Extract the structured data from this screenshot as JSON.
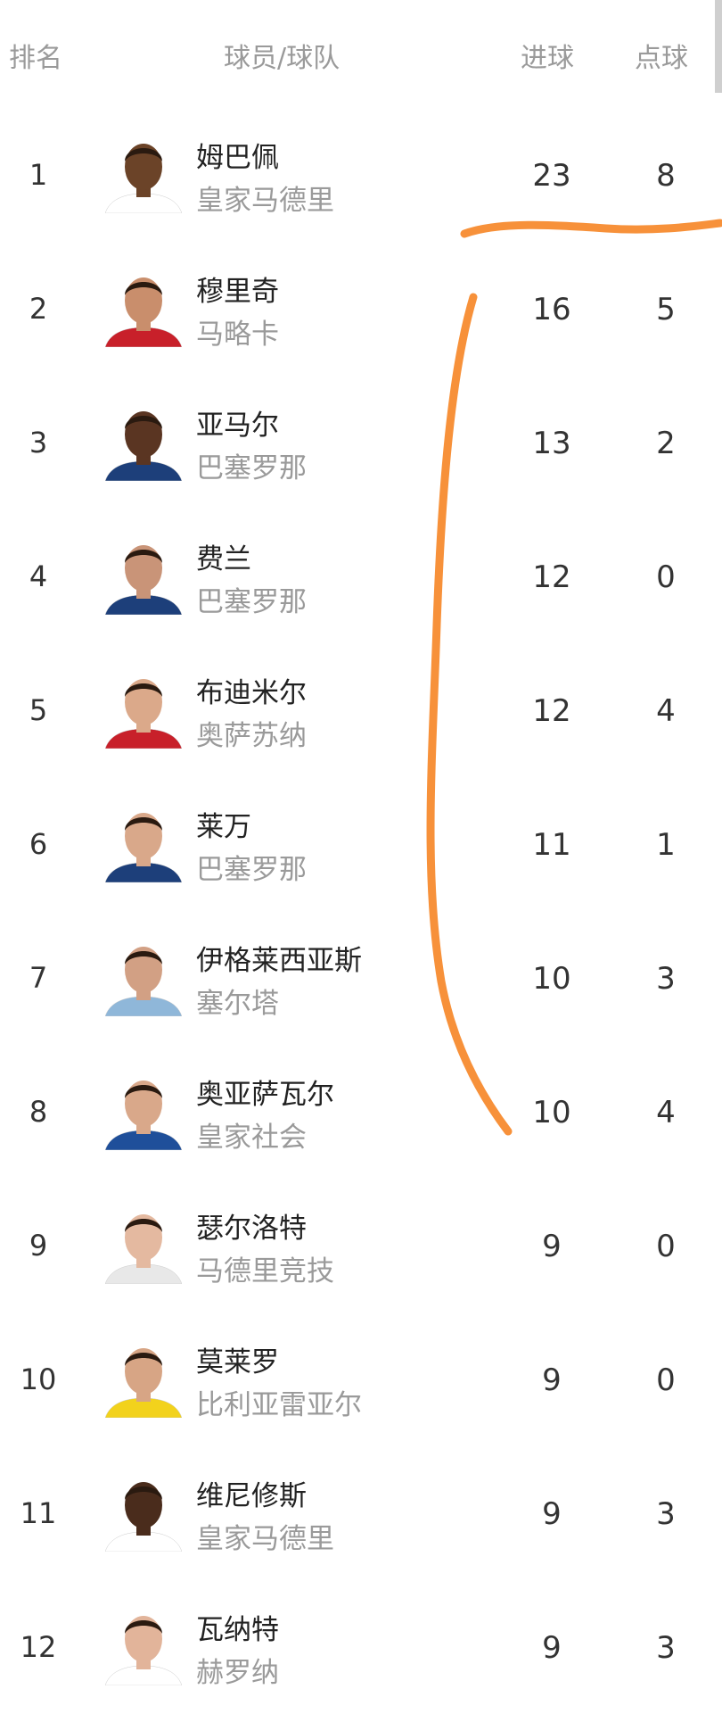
{
  "header": {
    "rank": "排名",
    "player_team": "球员/球队",
    "goals": "进球",
    "penalties": "点球"
  },
  "rows": [
    {
      "rank": "1",
      "name": "姆巴佩",
      "team": "皇家马德里",
      "goals": "23",
      "penalties": "8",
      "shirt": "#ffffff",
      "skin": "#6b4328"
    },
    {
      "rank": "2",
      "name": "穆里奇",
      "team": "马略卡",
      "goals": "16",
      "penalties": "5",
      "shirt": "#c8202a",
      "skin": "#c98e6c"
    },
    {
      "rank": "3",
      "name": "亚马尔",
      "team": "巴塞罗那",
      "goals": "13",
      "penalties": "2",
      "shirt": "#1d3f7a",
      "skin": "#5a3522"
    },
    {
      "rank": "4",
      "name": "费兰",
      "team": "巴塞罗那",
      "goals": "12",
      "penalties": "0",
      "shirt": "#1d3f7a",
      "skin": "#c99478"
    },
    {
      "rank": "5",
      "name": "布迪米尔",
      "team": "奥萨苏纳",
      "goals": "12",
      "penalties": "4",
      "shirt": "#c8202a",
      "skin": "#dba98a"
    },
    {
      "rank": "6",
      "name": "莱万",
      "team": "巴塞罗那",
      "goals": "11",
      "penalties": "1",
      "shirt": "#1d3f7a",
      "skin": "#d9a88a"
    },
    {
      "rank": "7",
      "name": "伊格莱西亚斯",
      "team": "塞尔塔",
      "goals": "10",
      "penalties": "3",
      "shirt": "#8fb7d9",
      "skin": "#d2a084"
    },
    {
      "rank": "8",
      "name": "奥亚萨瓦尔",
      "team": "皇家社会",
      "goals": "10",
      "penalties": "4",
      "shirt": "#1f4f9a",
      "skin": "#d9a88a"
    },
    {
      "rank": "9",
      "name": "瑟尔洛特",
      "team": "马德里竞技",
      "goals": "9",
      "penalties": "0",
      "shirt": "#e8e8e8",
      "skin": "#e4b9a0"
    },
    {
      "rank": "10",
      "name": "莫莱罗",
      "team": "比利亚雷亚尔",
      "goals": "9",
      "penalties": "0",
      "shirt": "#f2d21c",
      "skin": "#d7a585"
    },
    {
      "rank": "11",
      "name": "维尼修斯",
      "team": "皇家马德里",
      "goals": "9",
      "penalties": "3",
      "shirt": "#ffffff",
      "skin": "#4a2c1c"
    },
    {
      "rank": "12",
      "name": "瓦纳特",
      "team": "赫罗纳",
      "goals": "9",
      "penalties": "3",
      "shirt": "#ffffff",
      "skin": "#e2b49a"
    }
  ],
  "annotation_color": "#f7913a"
}
